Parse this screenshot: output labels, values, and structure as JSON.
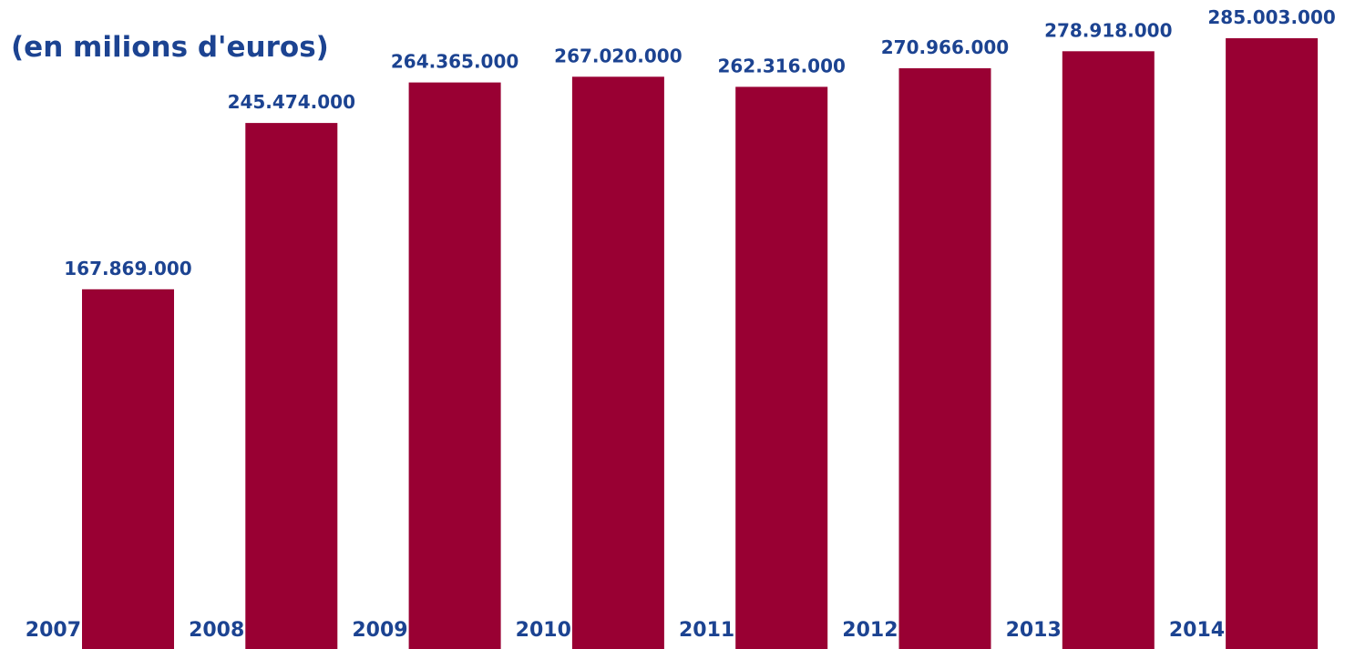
{
  "colors": {
    "bar": "#990033",
    "text": "#1c4391",
    "background": "#ffffff"
  },
  "chart_data": {
    "type": "bar",
    "title": "(en milions d'euros)",
    "xlabel": "",
    "ylabel": "",
    "grid": false,
    "legend": "none",
    "categories": [
      "2007",
      "2008",
      "2009",
      "2010",
      "2011",
      "2012",
      "2013",
      "2014"
    ],
    "values": [
      167869000,
      245474000,
      264365000,
      267020000,
      262316000,
      270966000,
      278918000,
      285003000
    ],
    "value_labels": [
      "167.869.000",
      "245.474.000",
      "264.365.000",
      "267.020.000",
      "262.316.000",
      "270.966.000",
      "278.918.000",
      "285.003.000"
    ],
    "ylim": [
      0,
      285003000
    ]
  }
}
